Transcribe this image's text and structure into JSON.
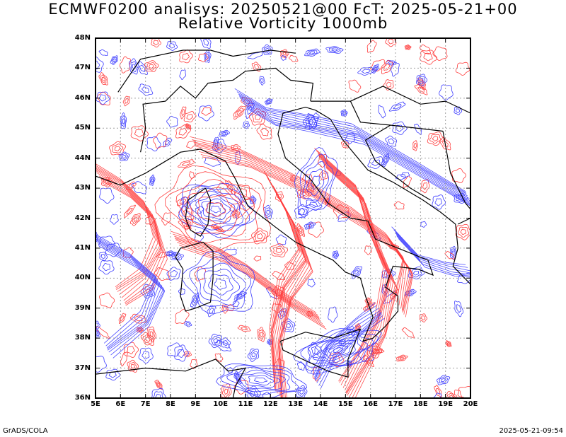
{
  "title": {
    "line1": "ECMWF0200 analisys: 20250521@00 FcT: 2025-05-21+00",
    "line2": "Relative Vorticity 1000mb"
  },
  "map": {
    "projection": "latlon",
    "lon_range": [
      5,
      20
    ],
    "lat_range": [
      36,
      48
    ],
    "lat_labels": [
      "48N",
      "47N",
      "46N",
      "45N",
      "44N",
      "43N",
      "42N",
      "41N",
      "40N",
      "39N",
      "38N",
      "37N",
      "36N"
    ],
    "lon_labels": [
      "5E",
      "6E",
      "7E",
      "8E",
      "9E",
      "10E",
      "11E",
      "12E",
      "13E",
      "14E",
      "15E",
      "16E",
      "17E",
      "18E",
      "19E",
      "20E"
    ],
    "colors": {
      "positive_contours": "#ff3c3c",
      "negative_contours": "#3c3cff",
      "coastlines": "#000000",
      "gridlines": "#a0a0a0"
    },
    "gridlines": "dotted"
  },
  "footer": {
    "left": "GrADS/COLA",
    "right": "2025-05-21-09:54"
  }
}
